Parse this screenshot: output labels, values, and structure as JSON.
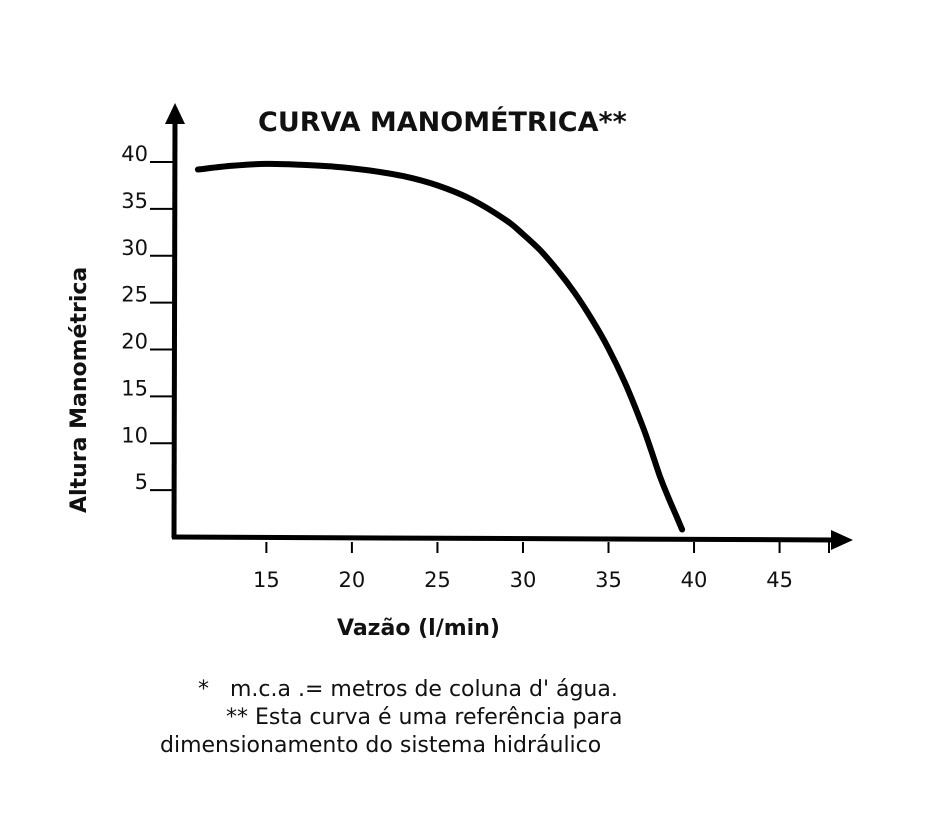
{
  "chart_data": {
    "type": "line",
    "title": "CURVA MANOMÉTRICA**",
    "xlabel": "Vazão (l/min)",
    "ylabel": "Altura Manométrica",
    "x_ticks": [
      15,
      20,
      25,
      30,
      35,
      40,
      45
    ],
    "y_ticks": [
      5,
      10,
      15,
      20,
      25,
      30,
      35,
      40
    ],
    "xlim": [
      9.6,
      49
    ],
    "ylim": [
      0,
      40
    ],
    "grid": false,
    "series": [
      {
        "x": [
          11,
          13,
          15,
          17,
          19,
          21,
          23,
          25,
          27,
          29,
          30,
          31,
          32,
          33,
          34,
          35,
          36,
          37,
          37.5,
          38,
          38.5,
          39,
          39.3
        ],
        "y": [
          39.2,
          39.6,
          39.8,
          39.7,
          39.5,
          39.1,
          38.5,
          37.5,
          36.0,
          33.8,
          32.3,
          30.6,
          28.5,
          26.1,
          23.3,
          20.1,
          16.3,
          11.8,
          9.2,
          6.5,
          4.2,
          2.1,
          0.8
        ]
      }
    ]
  },
  "notes": {
    "line1": "*   m.c.a .= metros de coluna d' água.",
    "line2": "    ** Esta curva é uma referência para",
    "line3": "dimensionamento do sistema hidráulico"
  }
}
